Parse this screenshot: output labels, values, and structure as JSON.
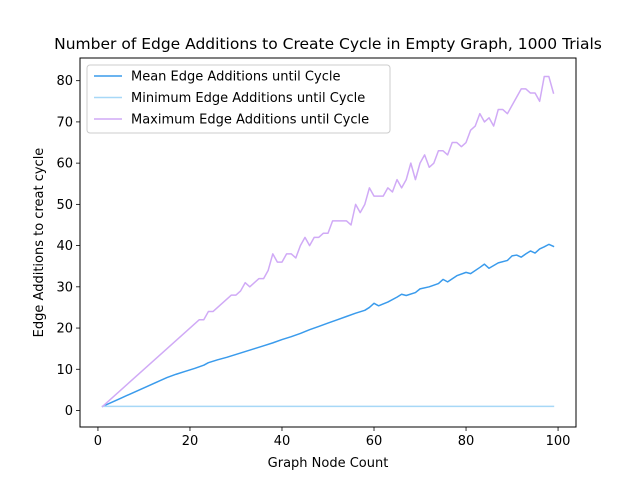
{
  "chart_data": {
    "type": "line",
    "title": "Number of Edge Additions to Create Cycle in Empty Graph, 1000 Trials",
    "xlabel": "Graph Node Count",
    "ylabel": "Edge Additions to creat cycle",
    "xlim": [
      -3.9,
      103.9
    ],
    "ylim": [
      -4,
      85.5
    ],
    "xticks": [
      0,
      20,
      40,
      60,
      80,
      100
    ],
    "yticks": [
      0,
      10,
      20,
      30,
      40,
      50,
      60,
      70,
      80
    ],
    "grid": false,
    "legend_position": "top-left",
    "series": [
      {
        "name": "Mean Edge Additions until Cycle",
        "color": "#3a9bec",
        "points": [
          [
            1,
            1
          ],
          [
            3,
            2
          ],
          [
            5,
            3
          ],
          [
            7,
            4
          ],
          [
            9,
            5
          ],
          [
            11,
            6
          ],
          [
            13,
            7
          ],
          [
            15,
            8
          ],
          [
            17,
            8.8
          ],
          [
            19,
            9.5
          ],
          [
            21,
            10.2
          ],
          [
            23,
            11
          ],
          [
            24,
            11.6
          ],
          [
            26,
            12.3
          ],
          [
            28,
            12.9
          ],
          [
            30,
            13.6
          ],
          [
            32,
            14.3
          ],
          [
            34,
            15
          ],
          [
            36,
            15.7
          ],
          [
            38,
            16.4
          ],
          [
            40,
            17.2
          ],
          [
            42,
            17.9
          ],
          [
            44,
            18.7
          ],
          [
            46,
            19.6
          ],
          [
            48,
            20.4
          ],
          [
            50,
            21.2
          ],
          [
            52,
            22
          ],
          [
            54,
            22.8
          ],
          [
            56,
            23.6
          ],
          [
            58,
            24.3
          ],
          [
            59,
            25
          ],
          [
            60,
            26
          ],
          [
            61,
            25.4
          ],
          [
            63,
            26.3
          ],
          [
            65,
            27.5
          ],
          [
            66,
            28.2
          ],
          [
            67,
            27.9
          ],
          [
            69,
            28.6
          ],
          [
            70,
            29.5
          ],
          [
            72,
            30
          ],
          [
            74,
            30.8
          ],
          [
            75,
            31.8
          ],
          [
            76,
            31.2
          ],
          [
            78,
            32.7
          ],
          [
            80,
            33.5
          ],
          [
            81,
            33.2
          ],
          [
            83,
            34.7
          ],
          [
            84,
            35.5
          ],
          [
            85,
            34.5
          ],
          [
            87,
            35.8
          ],
          [
            89,
            36.4
          ],
          [
            90,
            37.5
          ],
          [
            91,
            37.7
          ],
          [
            92,
            37.2
          ],
          [
            93,
            38
          ],
          [
            94,
            38.7
          ],
          [
            95,
            38.2
          ],
          [
            96,
            39.2
          ],
          [
            97,
            39.7
          ],
          [
            98,
            40.3
          ],
          [
            99,
            39.8
          ]
        ]
      },
      {
        "name": "Minimum Edge Additions until Cycle",
        "color": "#a7d8f7",
        "points": [
          [
            1,
            1
          ],
          [
            99,
            1
          ]
        ]
      },
      {
        "name": "Maximum Edge Additions until Cycle",
        "color": "#d0aaf6",
        "points": [
          [
            1,
            1
          ],
          [
            10,
            10
          ],
          [
            20,
            20
          ],
          [
            22,
            22
          ],
          [
            23,
            22
          ],
          [
            24,
            24
          ],
          [
            25,
            24
          ],
          [
            27,
            26
          ],
          [
            29,
            28
          ],
          [
            30,
            28
          ],
          [
            31,
            29
          ],
          [
            32,
            31
          ],
          [
            33,
            30
          ],
          [
            35,
            32
          ],
          [
            36,
            32
          ],
          [
            37,
            34
          ],
          [
            38,
            38
          ],
          [
            39,
            36
          ],
          [
            40,
            36
          ],
          [
            41,
            38
          ],
          [
            42,
            38
          ],
          [
            43,
            37
          ],
          [
            44,
            40
          ],
          [
            45,
            42
          ],
          [
            46,
            40
          ],
          [
            47,
            42
          ],
          [
            48,
            42
          ],
          [
            49,
            43
          ],
          [
            50,
            43
          ],
          [
            51,
            46
          ],
          [
            52,
            46
          ],
          [
            53,
            46
          ],
          [
            54,
            46
          ],
          [
            55,
            45
          ],
          [
            56,
            50
          ],
          [
            57,
            48
          ],
          [
            58,
            50
          ],
          [
            59,
            54
          ],
          [
            60,
            52
          ],
          [
            61,
            52
          ],
          [
            62,
            52
          ],
          [
            63,
            54
          ],
          [
            64,
            53
          ],
          [
            65,
            56
          ],
          [
            66,
            54
          ],
          [
            67,
            56
          ],
          [
            68,
            60
          ],
          [
            69,
            56
          ],
          [
            70,
            60
          ],
          [
            71,
            62
          ],
          [
            72,
            59
          ],
          [
            73,
            60
          ],
          [
            74,
            63
          ],
          [
            75,
            63
          ],
          [
            76,
            62
          ],
          [
            77,
            65
          ],
          [
            78,
            65
          ],
          [
            79,
            64
          ],
          [
            80,
            65
          ],
          [
            81,
            68
          ],
          [
            82,
            69
          ],
          [
            83,
            72
          ],
          [
            84,
            70
          ],
          [
            85,
            71
          ],
          [
            86,
            69
          ],
          [
            87,
            73
          ],
          [
            88,
            73
          ],
          [
            89,
            72
          ],
          [
            90,
            74
          ],
          [
            91,
            76
          ],
          [
            92,
            78
          ],
          [
            93,
            78
          ],
          [
            94,
            77
          ],
          [
            95,
            77
          ],
          [
            96,
            75
          ],
          [
            97,
            81
          ],
          [
            98,
            81
          ],
          [
            99,
            77
          ]
        ]
      }
    ]
  }
}
